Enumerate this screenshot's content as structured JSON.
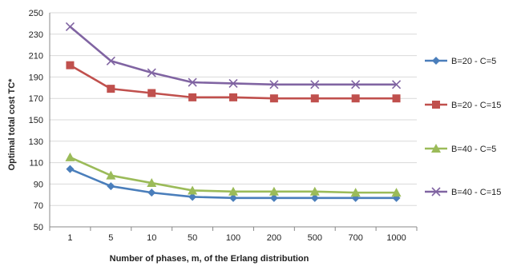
{
  "chart_data": {
    "type": "line",
    "title": "",
    "xlabel": "Number of phases, m, of the Erlang distribution",
    "ylabel": "Optimal total cost TC*",
    "ylim": [
      50,
      250
    ],
    "ytick_step": 20,
    "grid": "horizontal",
    "legend_position": "right",
    "categories": [
      "1",
      "5",
      "10",
      "50",
      "100",
      "200",
      "500",
      "700",
      "1000"
    ],
    "series": [
      {
        "name": "B=20 - C=5",
        "color": "#4a7ebb",
        "marker": "diamond",
        "values": [
          104,
          88,
          82,
          78,
          77,
          77,
          77,
          77,
          77
        ]
      },
      {
        "name": "B=20 - C=15",
        "color": "#c0504d",
        "marker": "square",
        "values": [
          201,
          179,
          175,
          171,
          171,
          170,
          170,
          170,
          170
        ]
      },
      {
        "name": "B=40 - C=5",
        "color": "#9bbb59",
        "marker": "triangle",
        "values": [
          115,
          98,
          91,
          84,
          83,
          83,
          83,
          82,
          82
        ]
      },
      {
        "name": "B=40 - C=15",
        "color": "#8064a2",
        "marker": "x",
        "values": [
          237,
          205,
          194,
          185,
          184,
          183,
          183,
          183,
          183
        ]
      }
    ]
  }
}
